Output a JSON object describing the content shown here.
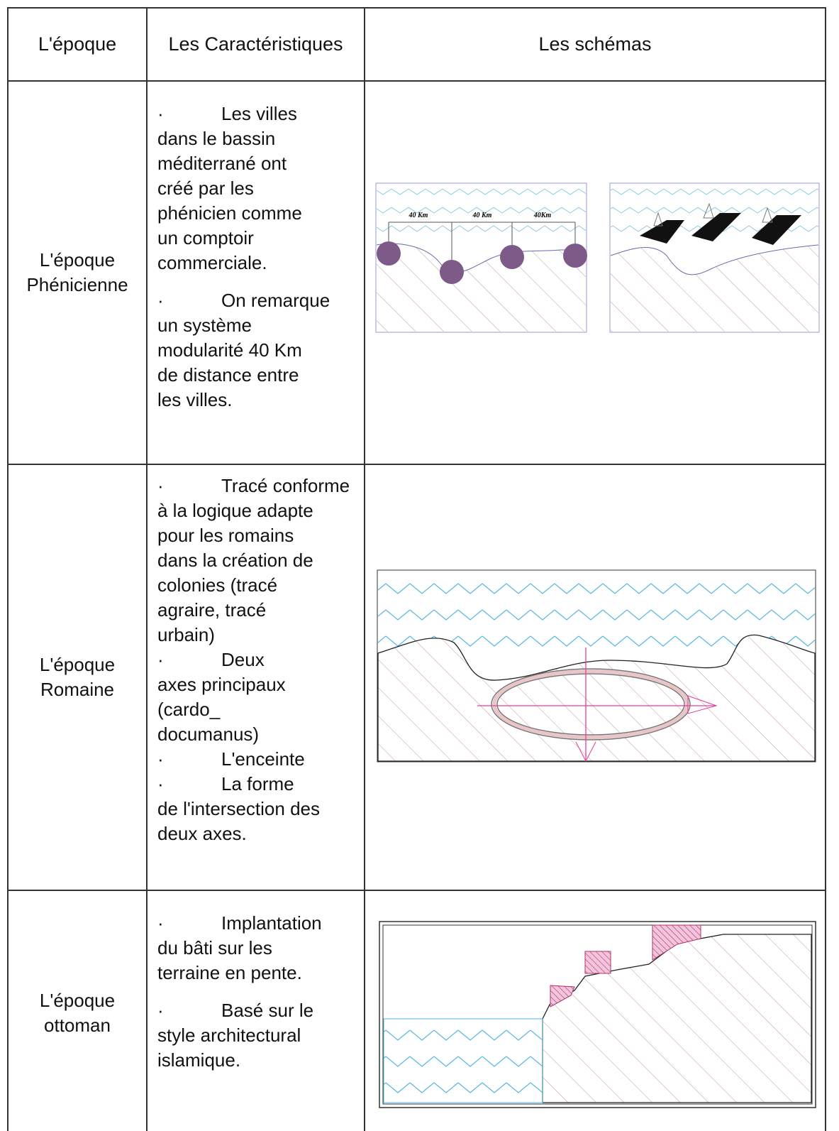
{
  "table": {
    "header": [
      "L'époque",
      "Les Caractéristiques",
      "Les schémas"
    ],
    "rows": [
      {
        "epoch": "L'époque Phénicienne",
        "items": [
          {
            "bullet": "·",
            "lines": [
              "Les villes",
              "dans le bassin",
              "méditerrané ont",
              "créé par les",
              "phénicien comme",
              "un comptoir",
              "commerciale."
            ]
          },
          {
            "bullet": "·",
            "lines": [
              "On remarque",
              "un système",
              "modularité 40 Km",
              "de distance entre",
              "les villes."
            ]
          }
        ],
        "schema_labels": [
          "40 Km",
          "40 Km",
          "40Km"
        ]
      },
      {
        "epoch": "L'époque Romaine",
        "items": [
          {
            "bullet": "·",
            "lines": [
              "Tracé conforme",
              "à la logique adapte",
              "pour les romains",
              "dans la création de",
              "colonies (tracé",
              "agraire, tracé",
              "urbain)"
            ]
          },
          {
            "bullet": "·",
            "lines": [
              "Deux",
              "axes principaux",
              "(cardo_",
              "documanus)"
            ]
          },
          {
            "bullet": "·",
            "lines": [
              "L'enceinte"
            ]
          },
          {
            "bullet": "·",
            "lines": [
              "La forme",
              "de l'intersection des",
              "deux axes."
            ]
          }
        ]
      },
      {
        "epoch": "L'époque ottoman",
        "items": [
          {
            "bullet": "·",
            "lines": [
              "Implantation",
              "du bâti sur les",
              "terraine en pente."
            ]
          },
          {
            "bullet": "·",
            "lines": [
              "Basé sur le",
              "style architectural",
              "islamique."
            ]
          }
        ]
      }
    ]
  }
}
